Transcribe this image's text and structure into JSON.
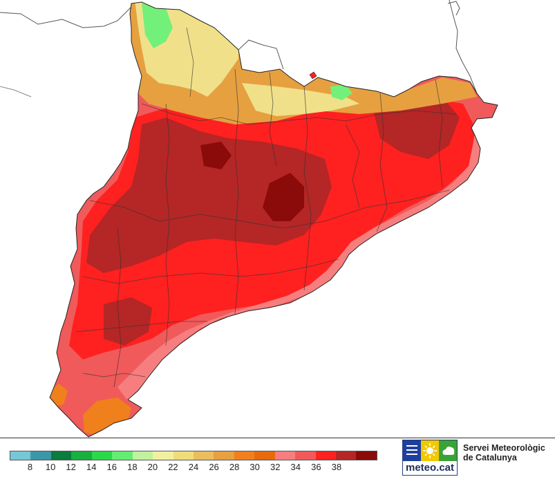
{
  "map": {
    "region": "Catalunya",
    "variable": "temperature",
    "colors": {
      "sea": "#ffffff",
      "border": "#333333",
      "frontier": "#555555"
    },
    "zones": [
      {
        "name": "base",
        "value_range": [
          32,
          34
        ],
        "color": "#f05a5a"
      },
      {
        "name": "hot",
        "value_range": [
          34,
          36
        ],
        "color": "#ff2020"
      },
      {
        "name": "very-hot",
        "value_range": [
          36,
          38
        ],
        "color": "#b52626"
      },
      {
        "name": "hottest",
        "value_range": [
          38,
          40
        ],
        "color": "#8b0a0a"
      },
      {
        "name": "coast-warm",
        "value_range": [
          30,
          32
        ],
        "color": "#f77e7e"
      },
      {
        "name": "delta",
        "value_range": [
          28,
          30
        ],
        "color": "#f0801c"
      },
      {
        "name": "pyrenees-mid",
        "value_range": [
          24,
          28
        ],
        "color": "#e6a040"
      },
      {
        "name": "pyrenees-high",
        "value_range": [
          20,
          24
        ],
        "color": "#f0e08a"
      },
      {
        "name": "pyrenees-peak",
        "value_range": [
          14,
          18
        ],
        "color": "#73f07a"
      }
    ]
  },
  "legend": {
    "colors": [
      "#77c7d6",
      "#3b98a8",
      "#0a7d3c",
      "#18b040",
      "#2ad94a",
      "#63ee73",
      "#c2f29d",
      "#f2f0a0",
      "#f1dc7a",
      "#ebbe5c",
      "#e8a040",
      "#f0801c",
      "#e86a0a",
      "#f77e7e",
      "#f05a5a",
      "#ff2020",
      "#b52626",
      "#8b0a0a"
    ],
    "ticks": [
      "8",
      "10",
      "12",
      "14",
      "16",
      "18",
      "20",
      "22",
      "24",
      "26",
      "28",
      "30",
      "32",
      "34",
      "36",
      "38"
    ]
  },
  "logo": {
    "text": "meteo.cat",
    "colors": {
      "blue": "#1f3f9f",
      "yellow": "#f2c800",
      "green": "#3aa335"
    }
  },
  "agency": {
    "line1": "Servei Meteorològic",
    "line2": "de Catalunya"
  }
}
